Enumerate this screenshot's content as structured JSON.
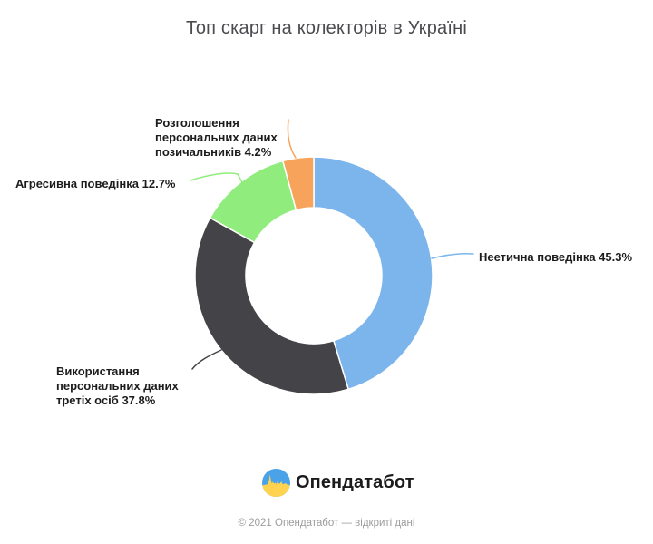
{
  "chart_data": {
    "type": "pie",
    "subtype": "donut",
    "title": "Топ скарг на колекторів в Україні",
    "start_angle_deg": 0,
    "direction": "clockwise",
    "inner_radius_pct": 57,
    "legend": "none",
    "series": [
      {
        "label": "Неетична поведінка",
        "value": 45.3,
        "color": "#7cb5ec"
      },
      {
        "label": "Використання персональних даних третіх осіб",
        "value": 37.8,
        "color": "#434348"
      },
      {
        "label": "Агресивна поведінка",
        "value": 12.7,
        "color": "#90ed7d"
      },
      {
        "label": "Розголошення персональних даних позичальників",
        "value": 4.2,
        "color": "#f7a35c"
      }
    ]
  },
  "labels": {
    "unethical": {
      "lines": [
        "Неетична поведінка 45.3%"
      ]
    },
    "usage": {
      "lines": [
        "Використання",
        "персональних даних",
        "третіх осіб 37.8%"
      ]
    },
    "aggressive": {
      "lines": [
        "Агресивна поведінка 12.7%"
      ]
    },
    "disclosure": {
      "lines": [
        "Розголошення",
        "персональних даних",
        "позичальників 4.2%"
      ]
    }
  },
  "logo": {
    "text": "Опендатабот"
  },
  "footer": {
    "text": "© 2021 Опендатабот — відкриті дані"
  }
}
